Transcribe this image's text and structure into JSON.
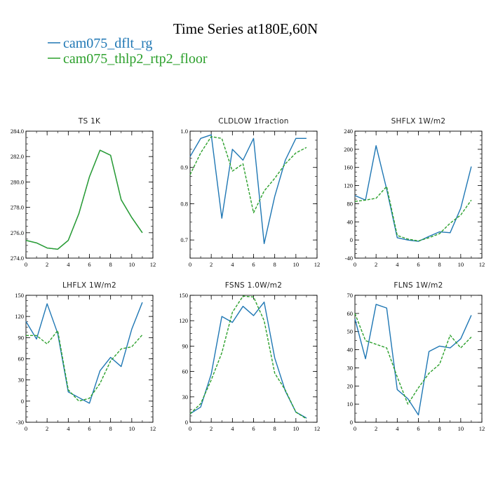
{
  "figure": {
    "title": "Time Series at180E,60N",
    "legend": [
      {
        "label": "cam075_dflt_rg",
        "color": "#1f77b4",
        "dash": false
      },
      {
        "label": "cam075_thlp2_rtp2_floor",
        "color": "#2ca02c",
        "dash": false
      }
    ]
  },
  "chart_data": [
    {
      "type": "line",
      "title": "TS   1K",
      "x": [
        0,
        1,
        2,
        3,
        4,
        5,
        6,
        7,
        8,
        9,
        10,
        11
      ],
      "xlim": [
        0,
        12
      ],
      "xticks": [
        0,
        2,
        4,
        6,
        8,
        10,
        12
      ],
      "xminor": 1,
      "ylim": [
        274.0,
        284.0
      ],
      "yticks": [
        274.0,
        276.0,
        278.0,
        280.0,
        282.0,
        284.0
      ],
      "ytick_labels": [
        "274.0",
        "276.0",
        "278.0",
        "280.0",
        "282.0",
        "284.0"
      ],
      "yminor": 0.5,
      "series": [
        {
          "color": "#1f77b4",
          "dashed": false,
          "values": [
            275.4,
            275.2,
            274.8,
            274.7,
            275.4,
            277.5,
            280.4,
            282.5,
            282.1,
            278.6,
            277.2,
            276.0
          ]
        },
        {
          "color": "#2ca02c",
          "dashed": false,
          "values": [
            275.4,
            275.2,
            274.8,
            274.7,
            275.4,
            277.5,
            280.4,
            282.5,
            282.1,
            278.6,
            277.2,
            276.0
          ]
        }
      ]
    },
    {
      "type": "line",
      "title": "CLDLOW   1fraction",
      "x": [
        0,
        1,
        2,
        3,
        4,
        5,
        6,
        7,
        8,
        9,
        10,
        11
      ],
      "xlim": [
        0,
        12
      ],
      "xticks": [
        0,
        2,
        4,
        6,
        8,
        10,
        12
      ],
      "xminor": 1,
      "ylim": [
        0.65,
        1.0
      ],
      "yticks": [
        0.7,
        0.8,
        0.9,
        1.0
      ],
      "ytick_labels": [
        "0.7",
        "0.8",
        "0.9",
        "1.0"
      ],
      "yminor": 0.025,
      "series": [
        {
          "color": "#1f77b4",
          "dashed": false,
          "values": [
            0.93,
            0.98,
            0.99,
            0.76,
            0.95,
            0.92,
            0.98,
            0.69,
            0.82,
            0.92,
            0.98,
            0.98
          ]
        },
        {
          "color": "#2ca02c",
          "dashed": true,
          "values": [
            0.88,
            0.94,
            0.985,
            0.98,
            0.89,
            0.91,
            0.775,
            0.835,
            0.87,
            0.91,
            0.94,
            0.955
          ]
        }
      ]
    },
    {
      "type": "line",
      "title": "SHFLX   1W/m2",
      "x": [
        0,
        1,
        2,
        3,
        4,
        5,
        6,
        7,
        8,
        9,
        10,
        11
      ],
      "xlim": [
        0,
        12
      ],
      "xticks": [
        0,
        2,
        4,
        6,
        8,
        10,
        12
      ],
      "xminor": 1,
      "ylim": [
        -40,
        240
      ],
      "yticks": [
        -40,
        0,
        40,
        80,
        120,
        160,
        200,
        240
      ],
      "ytick_labels": [
        "-40",
        "0",
        "40",
        "80",
        "120",
        "160",
        "200",
        "240"
      ],
      "yminor": 10,
      "series": [
        {
          "color": "#1f77b4",
          "dashed": false,
          "values": [
            98,
            88,
            208,
            112,
            5,
            0,
            -3,
            8,
            18,
            16,
            70,
            162
          ]
        },
        {
          "color": "#2ca02c",
          "dashed": true,
          "values": [
            85,
            88,
            92,
            118,
            10,
            2,
            -2,
            5,
            14,
            37,
            55,
            88
          ]
        }
      ]
    },
    {
      "type": "line",
      "title": "LHFLX   1W/m2",
      "x": [
        0,
        1,
        2,
        3,
        4,
        5,
        6,
        7,
        8,
        9,
        10,
        11
      ],
      "xlim": [
        0,
        12
      ],
      "xticks": [
        0,
        2,
        4,
        6,
        8,
        10,
        12
      ],
      "xminor": 1,
      "ylim": [
        -30,
        150
      ],
      "yticks": [
        -30,
        0,
        30,
        60,
        90,
        120,
        150
      ],
      "ytick_labels": [
        "-30",
        "0",
        "30",
        "60",
        "90",
        "120",
        "150"
      ],
      "yminor": 7.5,
      "series": [
        {
          "color": "#1f77b4",
          "dashed": false,
          "values": [
            113,
            88,
            138,
            96,
            13,
            5,
            -3,
            43,
            62,
            49,
            102,
            140
          ]
        },
        {
          "color": "#2ca02c",
          "dashed": true,
          "values": [
            93,
            93,
            81,
            100,
            16,
            0,
            4,
            25,
            57,
            74,
            77,
            94
          ]
        }
      ]
    },
    {
      "type": "line",
      "title": "FSNS   1.0W/m2",
      "x": [
        0,
        1,
        2,
        3,
        4,
        5,
        6,
        7,
        8,
        9,
        10,
        11
      ],
      "xlim": [
        0,
        12
      ],
      "xticks": [
        0,
        2,
        4,
        6,
        8,
        10,
        12
      ],
      "xminor": 1,
      "ylim": [
        0,
        150
      ],
      "yticks": [
        0,
        30,
        60,
        90,
        120,
        150
      ],
      "ytick_labels": [
        "0",
        "30",
        "60",
        "90",
        "120",
        "150"
      ],
      "yminor": 7.5,
      "series": [
        {
          "color": "#1f77b4",
          "dashed": false,
          "values": [
            10,
            18,
            57,
            125,
            118,
            137,
            126,
            142,
            76,
            37,
            12,
            5
          ]
        },
        {
          "color": "#2ca02c",
          "dashed": true,
          "values": [
            10,
            22,
            50,
            82,
            130,
            149,
            148,
            120,
            58,
            38,
            12,
            4
          ]
        }
      ]
    },
    {
      "type": "line",
      "title": "FLNS   1W/m2",
      "x": [
        0,
        1,
        2,
        3,
        4,
        5,
        6,
        7,
        8,
        9,
        10,
        11
      ],
      "xlim": [
        0,
        12
      ],
      "xticks": [
        0,
        2,
        4,
        6,
        8,
        10,
        12
      ],
      "xminor": 1,
      "ylim": [
        0,
        70
      ],
      "yticks": [
        0,
        10,
        20,
        30,
        40,
        50,
        60,
        70
      ],
      "ytick_labels": [
        "0",
        "10",
        "20",
        "30",
        "40",
        "50",
        "60",
        "70"
      ],
      "yminor": 5,
      "series": [
        {
          "color": "#1f77b4",
          "dashed": false,
          "values": [
            57,
            35,
            65,
            63,
            18,
            13,
            4,
            39,
            42,
            41,
            46,
            59
          ]
        },
        {
          "color": "#2ca02c",
          "dashed": true,
          "values": [
            60,
            45,
            43,
            41,
            25,
            10,
            19,
            27,
            32,
            48,
            41,
            47
          ]
        }
      ]
    }
  ]
}
